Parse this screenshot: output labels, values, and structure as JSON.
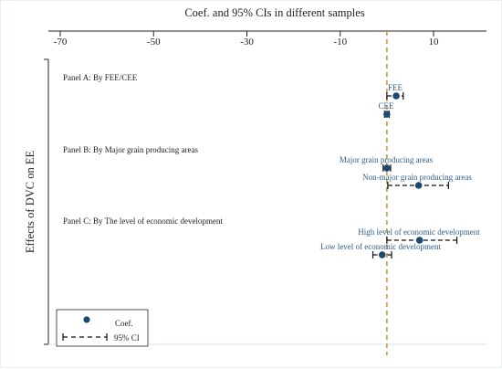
{
  "chart_data": {
    "type": "scatter",
    "title": "Coef. and 95% CIs in different samples",
    "ylabel": "Effects of DVC on EE",
    "xlim": [
      -70,
      15
    ],
    "x_ticks": [
      -70,
      -50,
      -30,
      -10,
      10
    ],
    "reference_line_x": 0,
    "grid": false,
    "legend_position": "bottom-left",
    "panels": [
      {
        "label": "Panel A: By FEE/CEE",
        "rows": [
          {
            "label": "FEE",
            "coef": 2.0,
            "ci": [
              0.0,
              3.5
            ]
          },
          {
            "label": "CEE",
            "coef": 0.0,
            "ci": [
              -0.5,
              0.5
            ]
          }
        ]
      },
      {
        "label": "Panel B: By Major grain producing areas",
        "rows": [
          {
            "label": "Major grain producing areas",
            "coef": 0.0,
            "ci": [
              -0.8,
              0.8
            ]
          },
          {
            "label": "Non-major grain producing areas",
            "coef": 6.8,
            "ci": [
              0.2,
              13.2
            ]
          }
        ]
      },
      {
        "label": "Panel C: By The level of economic development",
        "rows": [
          {
            "label": "High level of economic development",
            "coef": 7.0,
            "ci": [
              0.0,
              15.0
            ]
          },
          {
            "label": "Low level of economic development",
            "coef": -1.0,
            "ci": [
              -3.0,
              1.0
            ]
          }
        ]
      }
    ],
    "legend": {
      "coef_label": "Coef.",
      "ci_label": "95% CI"
    },
    "colors": {
      "marker": "#1a4a6e",
      "ci": "#111111",
      "ref_line": "#c89a46",
      "text": "#222222",
      "annot": "#2e5e8a",
      "axis": "#222222"
    }
  }
}
